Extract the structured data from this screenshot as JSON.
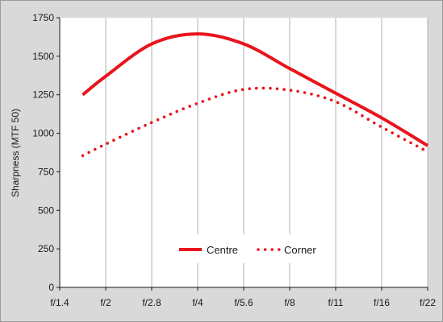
{
  "chart_data": {
    "type": "line",
    "categories": [
      "f/1.4",
      "f/2",
      "f/2.8",
      "f/4",
      "f/5.6",
      "f/8",
      "f/11",
      "f/16",
      "f/22"
    ],
    "ylabel": "Sharpness (MTF 50)",
    "xlabel": "",
    "title": "",
    "ylim": [
      0,
      1750
    ],
    "yticks": [
      "0",
      "250",
      "500",
      "750",
      "1000",
      "1250",
      "1500",
      "1750"
    ],
    "grid": "vertical",
    "legend_position": "bottom-center",
    "series": [
      {
        "name": "Centre",
        "style": "solid",
        "color": "#e8141c",
        "points": [
          {
            "x": 0.5,
            "y": 1250
          },
          {
            "x": 1.0,
            "y": 1370
          },
          {
            "x": 2.0,
            "y": 1580
          },
          {
            "x": 3.0,
            "y": 1645
          },
          {
            "x": 4.0,
            "y": 1580
          },
          {
            "x": 5.0,
            "y": 1420
          },
          {
            "x": 6.0,
            "y": 1260
          },
          {
            "x": 7.0,
            "y": 1100
          },
          {
            "x": 8.0,
            "y": 920
          }
        ]
      },
      {
        "name": "Corner",
        "style": "dotted",
        "color": "#e8141c",
        "points": [
          {
            "x": 0.5,
            "y": 855
          },
          {
            "x": 1.0,
            "y": 930
          },
          {
            "x": 2.0,
            "y": 1070
          },
          {
            "x": 3.0,
            "y": 1195
          },
          {
            "x": 4.0,
            "y": 1285
          },
          {
            "x": 5.0,
            "y": 1280
          },
          {
            "x": 6.0,
            "y": 1205
          },
          {
            "x": 7.0,
            "y": 1040
          },
          {
            "x": 8.0,
            "y": 880
          }
        ]
      }
    ]
  }
}
